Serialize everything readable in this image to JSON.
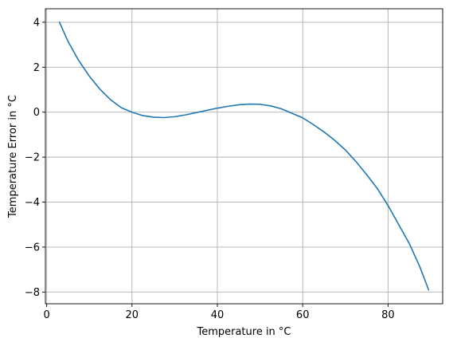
{
  "chart_data": {
    "type": "line",
    "title": "",
    "xlabel": "Temperature in °C",
    "ylabel": "Temperature Error in °C",
    "xlim": [
      -0.3,
      92.8
    ],
    "ylim": [
      -8.52,
      4.6
    ],
    "grid": true,
    "x_ticks": [
      0,
      20,
      40,
      60,
      80
    ],
    "x_tick_labels": [
      "0",
      "20",
      "40",
      "60",
      "80"
    ],
    "y_ticks": [
      4,
      2,
      0,
      -2,
      -4,
      -6,
      -8
    ],
    "y_tick_labels": [
      "4",
      "2",
      "0",
      "−2",
      "−4",
      "−6",
      "−8"
    ],
    "line_color": "#1f77b4",
    "grid_color": "#b0b0b0",
    "series": [
      {
        "x": [
          3,
          5,
          7.5,
          10,
          12.5,
          15,
          17.5,
          20,
          22.5,
          25,
          27.5,
          30,
          32.5,
          35,
          37.5,
          40,
          42.5,
          45,
          47.5,
          50,
          52.5,
          55,
          57.5,
          60,
          62.5,
          65,
          67.5,
          70,
          72.5,
          75,
          77.5,
          80,
          82.5,
          85,
          87.5,
          89.5
        ],
        "y": [
          4.0,
          3.15,
          2.3,
          1.6,
          1.02,
          0.55,
          0.2,
          0.0,
          -0.15,
          -0.22,
          -0.24,
          -0.2,
          -0.12,
          -0.02,
          0.08,
          0.18,
          0.26,
          0.33,
          0.36,
          0.35,
          0.28,
          0.15,
          -0.05,
          -0.25,
          -0.55,
          -0.88,
          -1.25,
          -1.68,
          -2.2,
          -2.78,
          -3.4,
          -4.15,
          -5.0,
          -5.85,
          -6.9,
          -7.9
        ]
      }
    ]
  }
}
